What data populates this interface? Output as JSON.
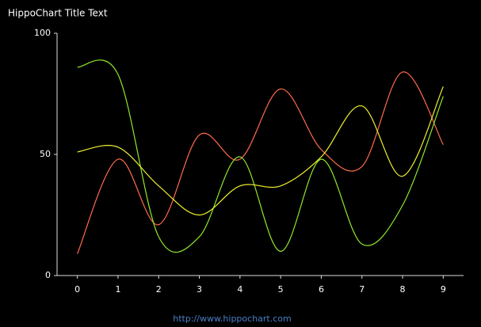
{
  "chart_data": {
    "type": "line",
    "title": "HippoChart Title Text",
    "x": [
      0,
      1,
      2,
      3,
      4,
      5,
      6,
      7,
      8,
      9
    ],
    "xlim": [
      -0.5,
      9.5
    ],
    "xticks": [
      0,
      1,
      2,
      3,
      4,
      5,
      6,
      7,
      8,
      9
    ],
    "ylim": [
      0,
      100
    ],
    "yticks": [
      0,
      50,
      100
    ],
    "smooth": true,
    "series": [
      {
        "color": "#ff6a4d",
        "values": [
          9,
          48,
          21,
          58,
          48,
          77,
          52,
          45,
          84,
          54
        ]
      },
      {
        "color": "#8ee82a",
        "values": [
          86,
          83,
          16,
          16,
          49,
          10,
          48,
          13,
          29,
          74
        ]
      },
      {
        "color": "#f0f030",
        "values": [
          51,
          53,
          37,
          25,
          37,
          37,
          49,
          70,
          41,
          78
        ]
      }
    ],
    "footer": "http://www.hippochart.com"
  }
}
